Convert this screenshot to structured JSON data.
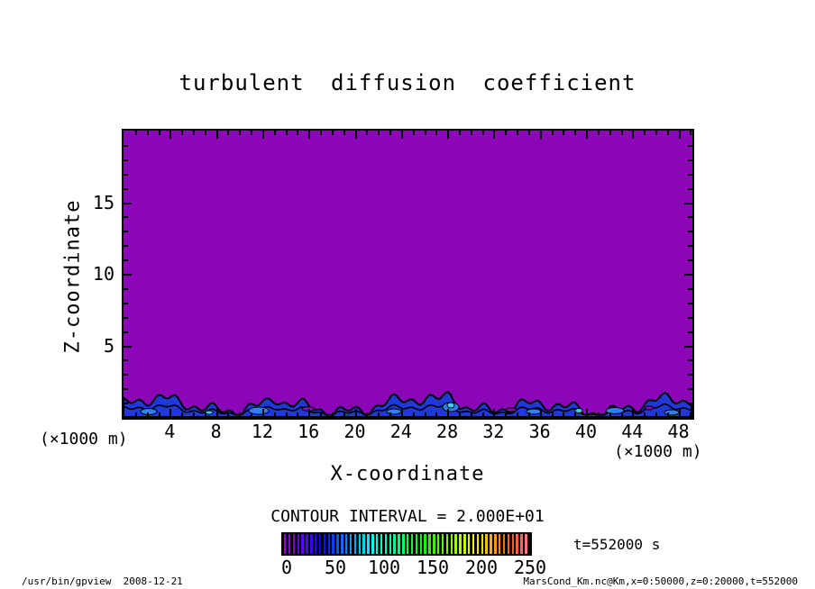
{
  "title": {
    "text": "turbulent diffusion coefficient"
  },
  "axes": {
    "x": {
      "label": "X-coordinate",
      "unit": "(×1000 m)",
      "major_ticks": [
        4,
        8,
        12,
        16,
        20,
        24,
        28,
        32,
        36,
        40,
        44,
        48
      ],
      "range": [
        0,
        50
      ]
    },
    "z": {
      "label": "Z-coordinate",
      "major_ticks": [
        5,
        10,
        15
      ],
      "range": [
        0,
        20
      ]
    }
  },
  "legend": {
    "contour_interval_text": "CONTOUR INTERVAL = 2.000E+01",
    "colorbar_ticks": [
      0,
      50,
      100,
      150,
      200,
      250
    ],
    "colorbar_range": [
      0,
      250
    ],
    "time_label": "t=552000 s"
  },
  "footer": {
    "command": "/usr/bin/gpview  2008-12-21",
    "data_info": "MarsCond_Km.nc@Km,x=0:50000,z=0:20000,t=552000"
  },
  "chart_data": {
    "type": "heatmap",
    "title": "turbulent diffusion coefficient",
    "xlabel": "X-coordinate",
    "ylabel": "Z-coordinate",
    "x_unit": "(×1000 m)",
    "z_unit": "(×1000 m)",
    "xlim": [
      0,
      50
    ],
    "zlim": [
      0,
      20
    ],
    "x_ticks_major": [
      4,
      8,
      12,
      16,
      20,
      24,
      28,
      32,
      36,
      40,
      44,
      48
    ],
    "z_ticks_major": [
      5,
      10,
      15
    ],
    "contour_interval": 20,
    "colorbar_range": [
      0,
      250
    ],
    "colorbar_ticks": [
      0,
      50,
      100,
      150,
      200,
      250
    ],
    "time_seconds": 552000,
    "field_description": "Turbulent diffusion coefficient Km below the first contour level (~0-20, uniform purple) over almost the whole 0-50 km x 0-20 km domain; a shallow turbulent boundary layer hugging the surface (z below about 1.5 km) where Km rises to ~20-100+, drawn as a wavy blue band with black contour lines every 20 units and small lighter-blue/cyan maxima patches",
    "colors": {
      "field_low": "#8A06B6",
      "boundary_layer": "#2038D8",
      "patch_mid": "#2F80F0",
      "patch_high": "#3FD0F0",
      "contour_line": "#000000",
      "frame": "#000000",
      "background": "#FFFFFF"
    }
  }
}
